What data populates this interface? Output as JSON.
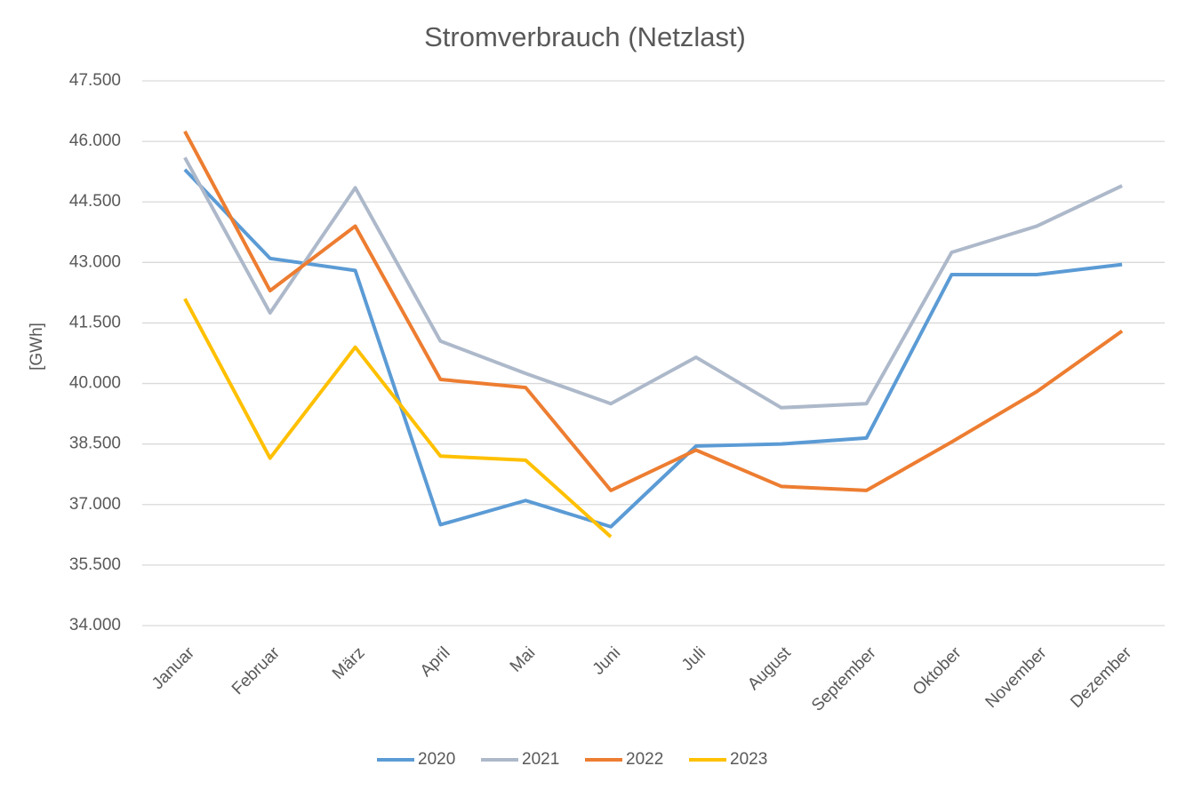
{
  "chart_data": {
    "type": "line",
    "title": "Stromverbrauch (Netzlast)",
    "y_label": "[GWh]",
    "categories": [
      "Januar",
      "Februar",
      "März",
      "April",
      "Mai",
      "Juni",
      "Juli",
      "August",
      "September",
      "Oktober",
      "November",
      "Dezember"
    ],
    "series": [
      {
        "name": "2020",
        "color": "#5b9bd5",
        "values": [
          45300,
          43100,
          42800,
          36500,
          37100,
          36450,
          38450,
          38500,
          38650,
          42700,
          42700,
          42950
        ]
      },
      {
        "name": "2021",
        "color": "#adb9ca",
        "values": [
          45600,
          41750,
          44850,
          41050,
          40250,
          39500,
          40650,
          39400,
          39500,
          43250,
          43900,
          44900
        ]
      },
      {
        "name": "2022",
        "color": "#ed7d31",
        "values": [
          46250,
          42300,
          43900,
          40100,
          39900,
          37350,
          38350,
          37450,
          37350,
          38550,
          39800,
          41300
        ]
      },
      {
        "name": "2023",
        "color": "#ffc000",
        "values": [
          42100,
          38150,
          40900,
          38200,
          38100,
          36200,
          null,
          null,
          null,
          null,
          null,
          null
        ]
      }
    ],
    "ylim": [
      34000,
      47500
    ],
    "yticks": [
      {
        "value": 34000,
        "label": "34.000"
      },
      {
        "value": 35500,
        "label": "35.500"
      },
      {
        "value": 37000,
        "label": "37.000"
      },
      {
        "value": 38500,
        "label": "38.500"
      },
      {
        "value": 40000,
        "label": "40.000"
      },
      {
        "value": 41500,
        "label": "41.500"
      },
      {
        "value": 43000,
        "label": "43.000"
      },
      {
        "value": 44500,
        "label": "44.500"
      },
      {
        "value": 46000,
        "label": "46.000"
      },
      {
        "value": 47500,
        "label": "47.500"
      }
    ],
    "grid": true,
    "legend": "bottom"
  }
}
